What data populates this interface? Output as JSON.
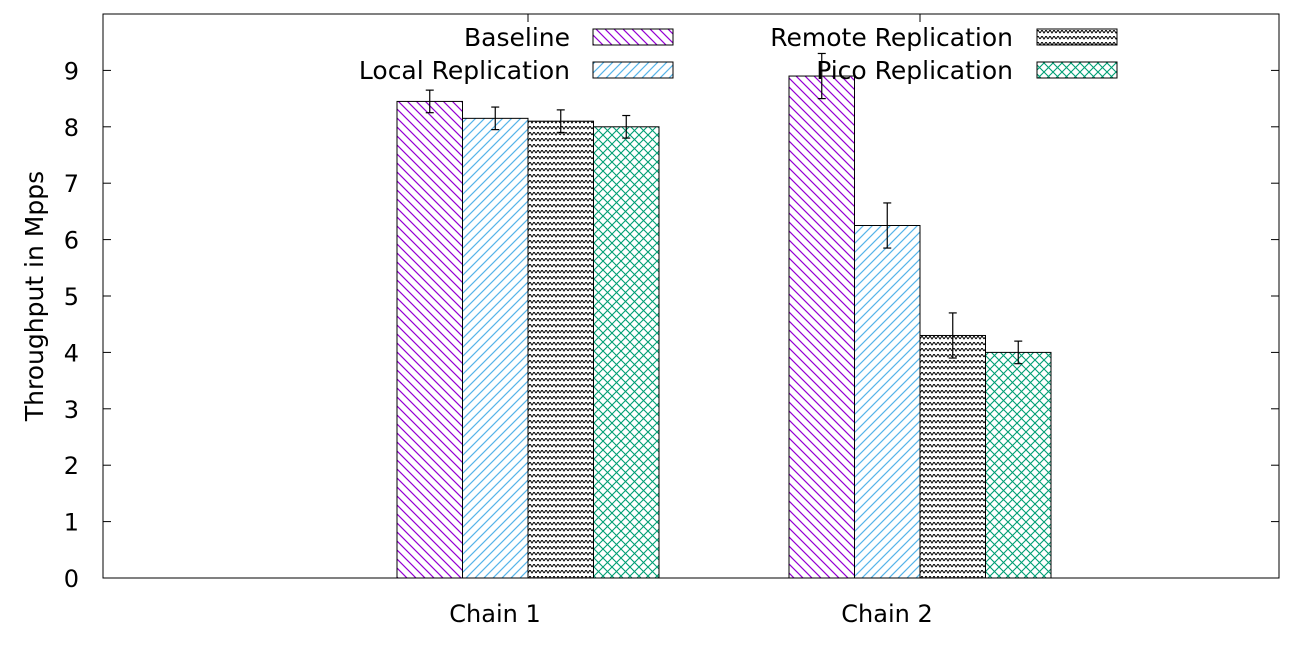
{
  "chart_data": {
    "type": "bar",
    "ylabel": "Throughput in Mpps",
    "xlabel": "",
    "ylim": [
      0,
      10
    ],
    "yticks": [
      0,
      1,
      2,
      3,
      4,
      5,
      6,
      7,
      8,
      9
    ],
    "categories": [
      "Chain 1",
      "Chain 2"
    ],
    "grid": false,
    "legend_position": "top-right",
    "series": [
      {
        "name": "Baseline",
        "values": [
          8.45,
          8.9
        ],
        "errors": [
          0.2,
          0.4
        ],
        "color": "#9400d3",
        "pattern": "diag-right"
      },
      {
        "name": "Local Replication",
        "values": [
          8.15,
          6.25
        ],
        "errors": [
          0.2,
          0.4
        ],
        "color": "#56b4e9",
        "pattern": "diag-left"
      },
      {
        "name": "Remote Replication",
        "values": [
          8.1,
          4.3
        ],
        "errors": [
          0.2,
          0.4
        ],
        "color": "#000000",
        "pattern": "zigzag"
      },
      {
        "name": "Pico Replication",
        "values": [
          8.0,
          4.0
        ],
        "errors": [
          0.2,
          0.2
        ],
        "color": "#009e73",
        "pattern": "crosshatch"
      }
    ]
  }
}
